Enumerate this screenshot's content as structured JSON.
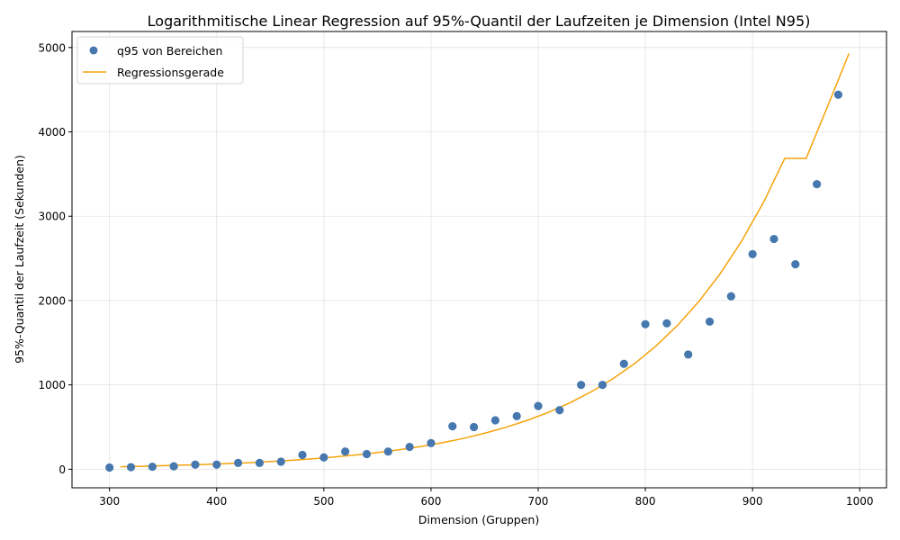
{
  "chart_data": {
    "type": "scatter",
    "title": "Logarithmitische Linear Regression auf 95%-Quantil der Laufzeiten je Dimension (Intel N95)",
    "xlabel": "Dimension (Gruppen)",
    "ylabel": "95%-Quantil der Laufzeit (Sekunden)",
    "xlim": [
      265,
      1025
    ],
    "ylim": [
      -220,
      5190
    ],
    "xticks": [
      300,
      400,
      500,
      600,
      700,
      800,
      900,
      1000
    ],
    "yticks": [
      0,
      1000,
      2000,
      3000,
      4000,
      5000
    ],
    "grid": true,
    "legend_position": "top-left",
    "colors": {
      "scatter": "#4678af",
      "line": "#f5a30a"
    },
    "series": [
      {
        "name": "q95 von Bereichen",
        "kind": "scatter",
        "x": [
          300,
          320,
          340,
          360,
          380,
          400,
          420,
          440,
          460,
          480,
          500,
          520,
          540,
          560,
          580,
          600,
          620,
          640,
          660,
          680,
          700,
          720,
          740,
          760,
          780,
          800,
          820,
          840,
          860,
          880,
          900,
          920,
          940,
          960,
          980
        ],
        "y": [
          20,
          25,
          30,
          35,
          55,
          55,
          75,
          75,
          90,
          170,
          140,
          210,
          180,
          210,
          265,
          310,
          510,
          500,
          580,
          630,
          750,
          700,
          1000,
          1000,
          1250,
          1720,
          1730,
          1360,
          1750,
          2050,
          2550,
          2730,
          2430,
          3380,
          4440
        ]
      },
      {
        "name": "Regressionsgerade",
        "kind": "line",
        "x": [
          310,
          330,
          350,
          370,
          390,
          410,
          430,
          450,
          470,
          490,
          510,
          530,
          550,
          570,
          590,
          610,
          630,
          650,
          670,
          690,
          710,
          730,
          750,
          770,
          790,
          810,
          830,
          850,
          870,
          890,
          910,
          930,
          950,
          970,
          990
        ],
        "y": [
          30,
          35,
          42,
          49,
          57,
          67,
          78,
          91,
          106,
          124,
          145,
          169,
          197,
          230,
          268,
          313,
          365,
          427,
          498,
          580,
          677,
          790,
          922,
          1075,
          1254,
          1463,
          1706,
          1990,
          2322,
          2708,
          3159,
          3685,
          3685,
          4300,
          4930
        ]
      }
    ]
  }
}
